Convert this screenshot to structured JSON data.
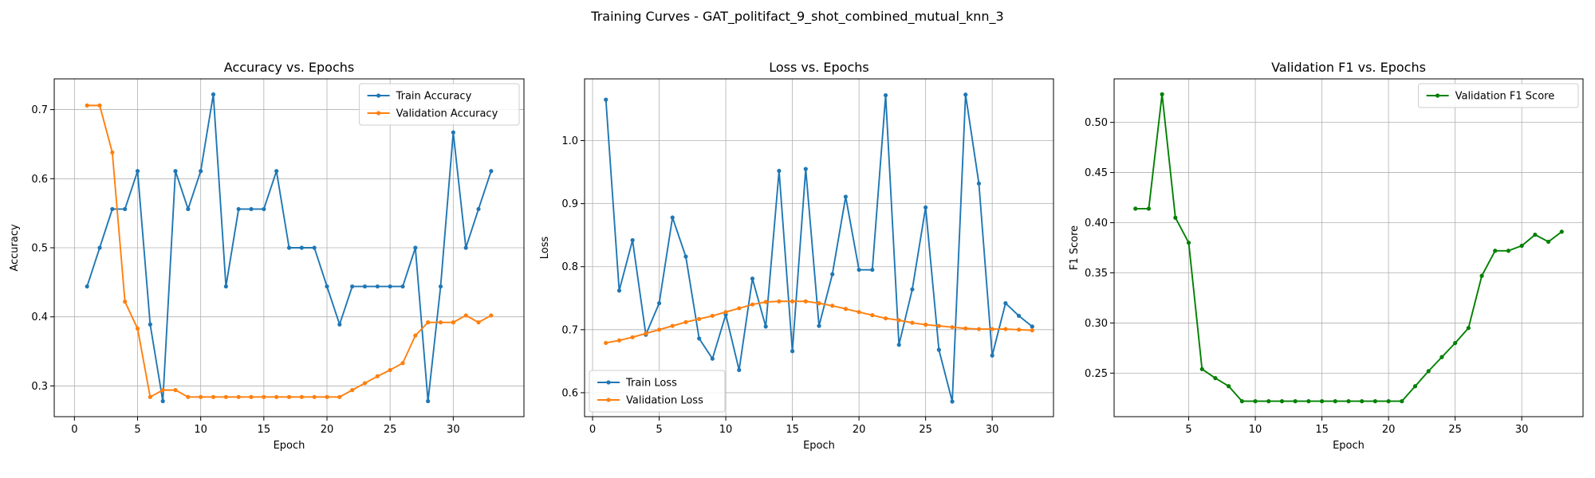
{
  "figure": {
    "suptitle": "Training Curves - GAT_politifact_9_shot_combined_mutual_knn_3"
  },
  "chart_data": [
    {
      "type": "line",
      "title": "Accuracy vs. Epochs",
      "xlabel": "Epoch",
      "ylabel": "Accuracy",
      "xlim": [
        -1.6,
        35.6
      ],
      "ylim": [
        0.2555,
        0.7445
      ],
      "xticks": [
        0,
        5,
        10,
        15,
        20,
        25,
        30
      ],
      "yticks": [
        0.3,
        0.4,
        0.5,
        0.6,
        0.7
      ],
      "grid": true,
      "legend_position": "upper right",
      "x": [
        1,
        2,
        3,
        4,
        5,
        6,
        7,
        8,
        9,
        10,
        11,
        12,
        13,
        14,
        15,
        16,
        17,
        18,
        19,
        20,
        21,
        22,
        23,
        24,
        25,
        26,
        27,
        28,
        29,
        30,
        31,
        32,
        33
      ],
      "series": [
        {
          "name": "Train Accuracy",
          "color": "#1f77b4",
          "values": [
            0.444,
            0.5,
            0.556,
            0.556,
            0.611,
            0.389,
            0.278,
            0.611,
            0.556,
            0.611,
            0.722,
            0.444,
            0.556,
            0.556,
            0.556,
            0.611,
            0.5,
            0.5,
            0.5,
            0.444,
            0.389,
            0.444,
            0.444,
            0.444,
            0.444,
            0.444,
            0.5,
            0.278,
            0.444,
            0.667,
            0.5,
            0.556,
            0.611
          ]
        },
        {
          "name": "Validation Accuracy",
          "color": "#ff7f0e",
          "values": [
            0.706,
            0.706,
            0.638,
            0.422,
            0.383,
            0.284,
            0.294,
            0.294,
            0.284,
            0.284,
            0.284,
            0.284,
            0.284,
            0.284,
            0.284,
            0.284,
            0.284,
            0.284,
            0.284,
            0.284,
            0.284,
            0.294,
            0.304,
            0.314,
            0.323,
            0.333,
            0.373,
            0.392,
            0.392,
            0.392,
            0.402,
            0.392,
            0.402
          ]
        }
      ]
    },
    {
      "type": "line",
      "title": "Loss vs. Epochs",
      "xlabel": "Epoch",
      "ylabel": "Loss",
      "xlim": [
        -0.6,
        34.6
      ],
      "ylim": [
        0.562,
        1.098
      ],
      "xticks": [
        0,
        5,
        10,
        15,
        20,
        25,
        30
      ],
      "yticks": [
        0.6,
        0.7,
        0.8,
        0.9,
        1.0
      ],
      "grid": true,
      "legend_position": "lower left",
      "x": [
        1,
        2,
        3,
        4,
        5,
        6,
        7,
        8,
        9,
        10,
        11,
        12,
        13,
        14,
        15,
        16,
        17,
        18,
        19,
        20,
        21,
        22,
        23,
        24,
        25,
        26,
        27,
        28,
        29,
        30,
        31,
        32,
        33
      ],
      "series": [
        {
          "name": "Train Loss",
          "color": "#1f77b4",
          "values": [
            1.065,
            0.762,
            0.842,
            0.692,
            0.742,
            0.878,
            0.816,
            0.686,
            0.654,
            0.724,
            0.636,
            0.781,
            0.705,
            0.952,
            0.666,
            0.955,
            0.706,
            0.788,
            0.911,
            0.795,
            0.795,
            1.072,
            0.676,
            0.764,
            0.894,
            0.668,
            0.586,
            1.073,
            0.932,
            0.659,
            0.742,
            0.722,
            0.705
          ]
        },
        {
          "name": "Validation Loss",
          "color": "#ff7f0e",
          "values": [
            0.679,
            0.683,
            0.688,
            0.694,
            0.7,
            0.706,
            0.712,
            0.717,
            0.722,
            0.728,
            0.734,
            0.74,
            0.744,
            0.745,
            0.745,
            0.745,
            0.742,
            0.738,
            0.733,
            0.728,
            0.723,
            0.718,
            0.715,
            0.711,
            0.708,
            0.706,
            0.704,
            0.702,
            0.701,
            0.701,
            0.701,
            0.7,
            0.699
          ]
        }
      ]
    },
    {
      "type": "line",
      "title": "Validation F1 vs. Epochs",
      "xlabel": "Epoch",
      "ylabel": "F1 Score",
      "xlim": [
        -0.6,
        34.6
      ],
      "ylim": [
        0.2066,
        0.5434
      ],
      "xticks": [
        5,
        10,
        15,
        20,
        25,
        30
      ],
      "yticks": [
        0.25,
        0.3,
        0.35,
        0.4,
        0.45,
        0.5
      ],
      "grid": true,
      "legend_position": "upper right",
      "x": [
        1,
        2,
        3,
        4,
        5,
        6,
        7,
        8,
        9,
        10,
        11,
        12,
        13,
        14,
        15,
        16,
        17,
        18,
        19,
        20,
        21,
        22,
        23,
        24,
        25,
        26,
        27,
        28,
        29,
        30,
        31,
        32,
        33
      ],
      "series": [
        {
          "name": "Validation F1 Score",
          "color": "#008000",
          "values": [
            0.414,
            0.414,
            0.528,
            0.405,
            0.38,
            0.254,
            0.245,
            0.237,
            0.222,
            0.222,
            0.222,
            0.222,
            0.222,
            0.222,
            0.222,
            0.222,
            0.222,
            0.222,
            0.222,
            0.222,
            0.222,
            0.237,
            0.252,
            0.266,
            0.28,
            0.295,
            0.347,
            0.372,
            0.372,
            0.377,
            0.388,
            0.381,
            0.391
          ]
        }
      ]
    }
  ]
}
